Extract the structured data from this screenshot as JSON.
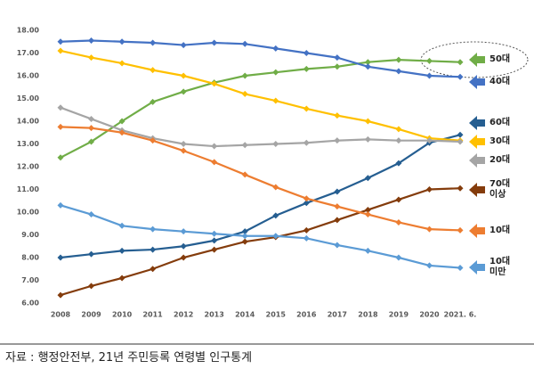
{
  "chart_data": {
    "type": "line",
    "categories": [
      "2008",
      "2009",
      "2010",
      "2011",
      "2012",
      "2013",
      "2014",
      "2015",
      "2016",
      "2017",
      "2018",
      "2019",
      "2020",
      "2021. 6."
    ],
    "ylim": [
      6,
      18
    ],
    "yticks": [
      {
        "value": 6,
        "label": "6.00"
      },
      {
        "value": 7,
        "label": "7.00"
      },
      {
        "value": 8,
        "label": "8.00"
      },
      {
        "value": 9,
        "label": "9.00"
      },
      {
        "value": 10,
        "label": "10.00"
      },
      {
        "value": 11,
        "label": "11.00"
      },
      {
        "value": 12,
        "label": "12.00"
      },
      {
        "value": 13,
        "label": "13.00"
      },
      {
        "value": 14,
        "label": "14.00"
      },
      {
        "value": 15,
        "label": "15.00"
      },
      {
        "value": 16,
        "label": "16.00"
      },
      {
        "value": 17,
        "label": "17.00"
      },
      {
        "value": 18,
        "label": "18.00"
      }
    ],
    "grid": false,
    "legend": "right",
    "series": [
      {
        "name": "50대",
        "color": "#70ad47",
        "values": [
          12.4,
          13.1,
          14.0,
          14.85,
          15.3,
          15.7,
          16.0,
          16.15,
          16.3,
          16.4,
          16.6,
          16.7,
          16.65,
          16.6
        ]
      },
      {
        "name": "40대",
        "color": "#4472c4",
        "values": [
          17.5,
          17.55,
          17.5,
          17.45,
          17.35,
          17.45,
          17.4,
          17.2,
          17.0,
          16.8,
          16.4,
          16.2,
          16.0,
          15.95
        ]
      },
      {
        "name": "60대",
        "color": "#255e91",
        "values": [
          8.0,
          8.15,
          8.3,
          8.35,
          8.5,
          8.75,
          9.15,
          9.85,
          10.4,
          10.9,
          11.5,
          12.15,
          13.05,
          13.4
        ]
      },
      {
        "name": "30대",
        "color": "#ffc000",
        "values": [
          17.1,
          16.8,
          16.55,
          16.25,
          16.0,
          15.65,
          15.2,
          14.9,
          14.55,
          14.25,
          14.0,
          13.65,
          13.25,
          13.15
        ]
      },
      {
        "name": "20대",
        "color": "#a5a5a5",
        "values": [
          14.6,
          14.1,
          13.6,
          13.25,
          13.0,
          12.9,
          12.95,
          13.0,
          13.05,
          13.15,
          13.2,
          13.15,
          13.15,
          13.1
        ]
      },
      {
        "name": "70대 이상",
        "color": "#843c0c",
        "values": [
          6.35,
          6.75,
          7.1,
          7.5,
          8.0,
          8.35,
          8.7,
          8.9,
          9.2,
          9.65,
          10.1,
          10.55,
          11.0,
          11.05
        ]
      },
      {
        "name": "10대",
        "color": "#ed7d31",
        "values": [
          13.75,
          13.7,
          13.5,
          13.15,
          12.7,
          12.2,
          11.65,
          11.1,
          10.6,
          10.25,
          9.9,
          9.55,
          9.25,
          9.2
        ]
      },
      {
        "name": "10대 미만",
        "color": "#5b9bd5",
        "values": [
          10.3,
          9.9,
          9.4,
          9.25,
          9.15,
          9.05,
          8.95,
          8.95,
          8.85,
          8.55,
          8.3,
          8.0,
          7.65,
          7.55
        ]
      }
    ],
    "source": "자료 : 행정안전부, 21년 주민등록 연령별 인구통계"
  }
}
